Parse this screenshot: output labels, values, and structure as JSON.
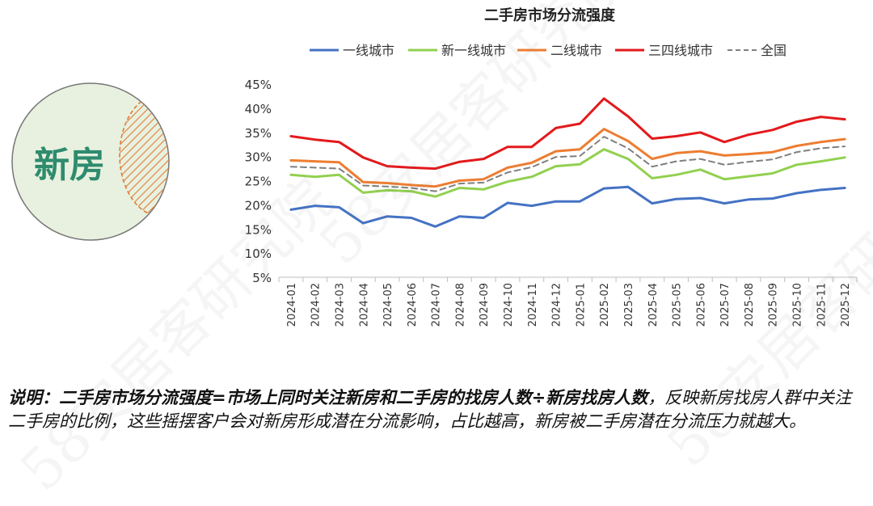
{
  "circle": {
    "label": "新房"
  },
  "chart_data": {
    "type": "line",
    "title": "二手房市场分流强度",
    "categories": [
      "2024-01",
      "2024-02",
      "2024-03",
      "2024-04",
      "2024-05",
      "2024-06",
      "2024-07",
      "2024-08",
      "2024-09",
      "2024-10",
      "2024-11",
      "2024-12",
      "2025-01",
      "2025-02",
      "2025-03",
      "2025-04",
      "2025-05",
      "2025-06",
      "2025-07",
      "2025-08",
      "2025-09",
      "2025-10",
      "2025-11",
      "2025-12"
    ],
    "ylim": [
      5,
      45
    ],
    "yticks": [
      "45%",
      "40%",
      "35%",
      "30%",
      "25%",
      "20%",
      "15%",
      "10%",
      "5%"
    ],
    "series": [
      {
        "name": "一线城市",
        "color": "#4472c4",
        "dash": false,
        "values": [
          19.0,
          19.8,
          19.5,
          16.2,
          17.6,
          17.3,
          15.5,
          17.6,
          17.3,
          20.4,
          19.8,
          20.7,
          20.7,
          23.4,
          23.7,
          20.3,
          21.2,
          21.4,
          20.3,
          21.1,
          21.3,
          22.4,
          23.1,
          23.5
        ]
      },
      {
        "name": "新一线城市",
        "color": "#92d050",
        "dash": false,
        "values": [
          26.2,
          25.8,
          26.2,
          22.5,
          23.0,
          22.8,
          21.7,
          23.5,
          23.2,
          24.8,
          25.8,
          28.0,
          28.4,
          31.5,
          29.5,
          25.5,
          26.2,
          27.3,
          25.3,
          25.9,
          26.5,
          28.3,
          29.0,
          29.8
        ]
      },
      {
        "name": "二线城市",
        "color": "#ed7d31",
        "dash": false,
        "values": [
          29.2,
          29.0,
          28.8,
          24.7,
          24.5,
          24.1,
          23.8,
          25.0,
          25.3,
          27.7,
          28.7,
          31.1,
          31.5,
          35.7,
          33.2,
          29.5,
          30.7,
          31.1,
          30.2,
          30.5,
          30.9,
          32.2,
          33.0,
          33.6
        ]
      },
      {
        "name": "三四线城市",
        "color": "#e3191c",
        "dash": false,
        "values": [
          34.2,
          33.5,
          33.0,
          29.8,
          28.0,
          27.7,
          27.5,
          28.9,
          29.5,
          32.0,
          32.0,
          35.9,
          36.8,
          42.0,
          38.3,
          33.7,
          34.2,
          35.0,
          33.0,
          34.5,
          35.5,
          37.2,
          38.2,
          37.7
        ]
      },
      {
        "name": "全国",
        "color": "#7f7f7f",
        "dash": true,
        "values": [
          27.9,
          27.7,
          27.5,
          24.0,
          23.8,
          23.5,
          22.8,
          24.4,
          24.6,
          26.7,
          27.8,
          29.9,
          30.1,
          34.1,
          31.7,
          27.9,
          29.0,
          29.5,
          28.3,
          28.9,
          29.4,
          30.9,
          31.7,
          32.1
        ]
      }
    ]
  },
  "note": {
    "bold_text": "说明：二手房市场分流强度=市场上同时关注新房和二手房的找房人数÷新房找房人数",
    "text": "，反映新房找房人群中关注二手房的比例，这些摇摆客户会对新房形成潜在分流影响，占比越高，新房被二手房潜在分流压力就越大。"
  },
  "watermark": [
    "58安居客研究院",
    "58安居客研究院",
    "58安居客研究院"
  ]
}
